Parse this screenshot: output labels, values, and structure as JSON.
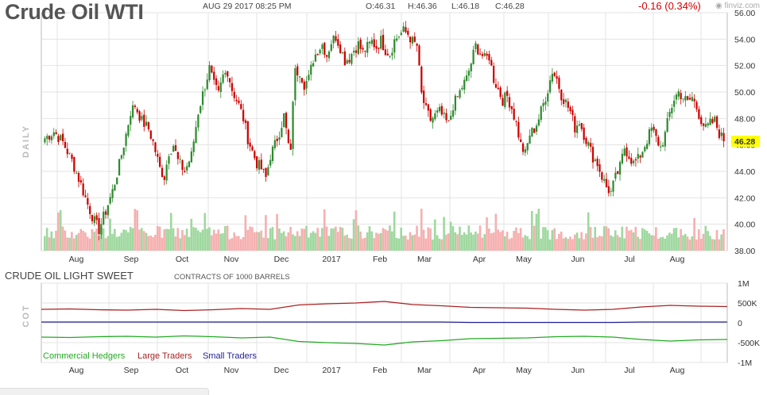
{
  "header": {
    "title": "Crude Oil WTI",
    "datetime": "AUG 29 2017 08:25 PM",
    "open": "O:46.31",
    "high": "H:46.36",
    "low": "L:46.18",
    "close": "C:46.28",
    "change": "-0.16 (0.34%)",
    "source": "finviz.com"
  },
  "colors": {
    "up": "#2e8b2e",
    "down": "#cc0000",
    "vol_up": "#9fd89f",
    "vol_down": "#f5b0b0",
    "last_price_bg": "#ffff00"
  },
  "chart_data": [
    {
      "type": "candlestick",
      "ylabel": "DAILY",
      "ylim": [
        38,
        56
      ],
      "y_ticks": [
        "56.00",
        "54.00",
        "52.00",
        "50.00",
        "48.00",
        "46.00",
        "44.00",
        "42.00",
        "40.00",
        "38.00"
      ],
      "x_tick_labels": [
        "Aug",
        "Sep",
        "Oct",
        "Nov",
        "Dec",
        "2017",
        "Feb",
        "Mar",
        "Apr",
        "May",
        "Jun",
        "Jul",
        "Aug"
      ],
      "last_price": "46.28",
      "close_trend": [
        [
          0,
          46.5
        ],
        [
          4,
          47.0
        ],
        [
          8,
          46.2
        ],
        [
          12,
          44.8
        ],
        [
          16,
          43.0
        ],
        [
          19,
          41.5
        ],
        [
          22,
          40.2
        ],
        [
          24,
          39.6
        ],
        [
          27,
          41.0
        ],
        [
          30,
          42.5
        ],
        [
          33,
          44.5
        ],
        [
          36,
          46.8
        ],
        [
          38,
          48.5
        ],
        [
          40,
          49.0
        ],
        [
          43,
          47.8
        ],
        [
          46,
          47.2
        ],
        [
          48,
          46.2
        ],
        [
          51,
          44.2
        ],
        [
          53,
          43.6
        ],
        [
          55,
          45.5
        ],
        [
          57,
          46.0
        ],
        [
          59,
          44.8
        ],
        [
          62,
          44.0
        ],
        [
          65,
          45.2
        ],
        [
          68,
          48.5
        ],
        [
          71,
          50.5
        ],
        [
          73,
          51.8
        ],
        [
          75,
          50.5
        ],
        [
          77,
          49.8
        ],
        [
          79,
          51.2
        ],
        [
          81,
          51.6
        ],
        [
          83,
          50.2
        ],
        [
          86,
          49.0
        ],
        [
          88,
          48.0
        ],
        [
          90,
          46.5
        ],
        [
          92,
          45.5
        ],
        [
          94,
          44.6
        ],
        [
          96,
          44.2
        ],
        [
          98,
          43.5
        ],
        [
          100,
          45.2
        ],
        [
          102,
          46.0
        ],
        [
          104,
          47.0
        ],
        [
          106,
          48.2
        ],
        [
          108,
          46.0
        ],
        [
          109,
          45.3
        ],
        [
          110,
          49.5
        ],
        [
          111,
          51.5
        ],
        [
          113,
          51.6
        ],
        [
          115,
          50.6
        ],
        [
          117,
          51.0
        ],
        [
          119,
          52.5
        ],
        [
          121,
          53.2
        ],
        [
          123,
          53.6
        ],
        [
          125,
          52.8
        ],
        [
          127,
          53.8
        ],
        [
          129,
          54.2
        ],
        [
          131,
          53.4
        ],
        [
          133,
          52.4
        ],
        [
          135,
          52.6
        ],
        [
          137,
          53.2
        ],
        [
          139,
          53.6
        ],
        [
          141,
          53.0
        ],
        [
          143,
          53.4
        ],
        [
          145,
          53.8
        ],
        [
          147,
          53.4
        ],
        [
          149,
          53.9
        ],
        [
          151,
          53.2
        ],
        [
          153,
          52.9
        ],
        [
          155,
          53.9
        ],
        [
          157,
          54.3
        ],
        [
          159,
          54.6
        ],
        [
          161,
          54.4
        ],
        [
          163,
          53.8
        ],
        [
          165,
          53.5
        ],
        [
          167,
          49.8
        ],
        [
          169,
          48.6
        ],
        [
          171,
          47.9
        ],
        [
          173,
          48.2
        ],
        [
          175,
          48.5
        ],
        [
          177,
          48.0
        ],
        [
          179,
          47.5
        ],
        [
          181,
          49.0
        ],
        [
          183,
          49.6
        ],
        [
          185,
          50.4
        ],
        [
          187,
          51.0
        ],
        [
          189,
          52.2
        ],
        [
          191,
          53.5
        ],
        [
          193,
          53.0
        ],
        [
          195,
          52.5
        ],
        [
          197,
          52.7
        ],
        [
          199,
          51.0
        ],
        [
          201,
          50.2
        ],
        [
          203,
          49.4
        ],
        [
          205,
          49.7
        ],
        [
          207,
          48.8
        ],
        [
          209,
          47.6
        ],
        [
          211,
          46.0
        ],
        [
          213,
          45.3
        ],
        [
          215,
          46.8
        ],
        [
          217,
          47.2
        ],
        [
          219,
          48.0
        ],
        [
          221,
          49.1
        ],
        [
          223,
          50.2
        ],
        [
          225,
          51.6
        ],
        [
          227,
          51.0
        ],
        [
          229,
          49.8
        ],
        [
          231,
          49.2
        ],
        [
          233,
          48.5
        ],
        [
          235,
          47.3
        ],
        [
          237,
          47.8
        ],
        [
          239,
          46.8
        ],
        [
          241,
          46.0
        ],
        [
          243,
          45.1
        ],
        [
          245,
          44.6
        ],
        [
          247,
          43.6
        ],
        [
          249,
          42.8
        ],
        [
          251,
          42.4
        ],
        [
          253,
          43.5
        ],
        [
          255,
          44.3
        ],
        [
          257,
          45.8
        ],
        [
          259,
          45.2
        ],
        [
          261,
          44.6
        ],
        [
          263,
          44.9
        ],
        [
          265,
          45.6
        ],
        [
          267,
          46.4
        ],
        [
          269,
          47.2
        ],
        [
          271,
          46.5
        ],
        [
          273,
          45.8
        ],
        [
          275,
          46.8
        ],
        [
          277,
          48.4
        ],
        [
          279,
          49.5
        ],
        [
          281,
          50.0
        ],
        [
          283,
          49.6
        ],
        [
          285,
          49.2
        ],
        [
          287,
          49.6
        ],
        [
          289,
          48.8
        ],
        [
          291,
          47.9
        ],
        [
          293,
          47.2
        ],
        [
          295,
          47.6
        ],
        [
          297,
          47.8
        ],
        [
          299,
          46.9
        ],
        [
          301,
          46.28
        ]
      ],
      "volume_note": "relative daily volume bars, green on up days, red on down days"
    },
    {
      "type": "line",
      "title": "CRUDE OIL LIGHT SWEET",
      "subtitle": "CONTRACTS OF 1000 BARRELS",
      "ylabel": "COT",
      "ylim": [
        -1000000,
        1000000
      ],
      "y_ticks": [
        "1M",
        "500K",
        "0",
        "-500K",
        "-1M"
      ],
      "x_tick_labels": [
        "Aug",
        "Sep",
        "Oct",
        "Nov",
        "Dec",
        "2017",
        "Feb",
        "Mar",
        "Apr",
        "May",
        "Jun",
        "Jul",
        "Aug"
      ],
      "series": [
        {
          "name": "Commercial Hedgers",
          "color": "#22aa22",
          "values": [
            -360000,
            -370000,
            -350000,
            -340000,
            -360000,
            -330000,
            -350000,
            -380000,
            -360000,
            -470000,
            -500000,
            -520000,
            -560000,
            -480000,
            -450000,
            -400000,
            -390000,
            -380000,
            -350000,
            -340000,
            -360000,
            -420000,
            -460000,
            -430000,
            -420000
          ]
        },
        {
          "name": "Large Traders",
          "color": "#aa2222",
          "values": [
            340000,
            350000,
            330000,
            320000,
            340000,
            310000,
            330000,
            360000,
            340000,
            450000,
            480000,
            500000,
            540000,
            460000,
            430000,
            390000,
            380000,
            370000,
            340000,
            320000,
            340000,
            400000,
            440000,
            420000,
            410000
          ]
        },
        {
          "name": "Small Traders",
          "color": "#222299",
          "values": [
            20000,
            20000,
            20000,
            20000,
            20000,
            20000,
            20000,
            20000,
            20000,
            20000,
            20000,
            20000,
            20000,
            20000,
            20000,
            10000,
            10000,
            10000,
            10000,
            10000,
            10000,
            20000,
            20000,
            20000,
            20000
          ]
        }
      ]
    }
  ]
}
